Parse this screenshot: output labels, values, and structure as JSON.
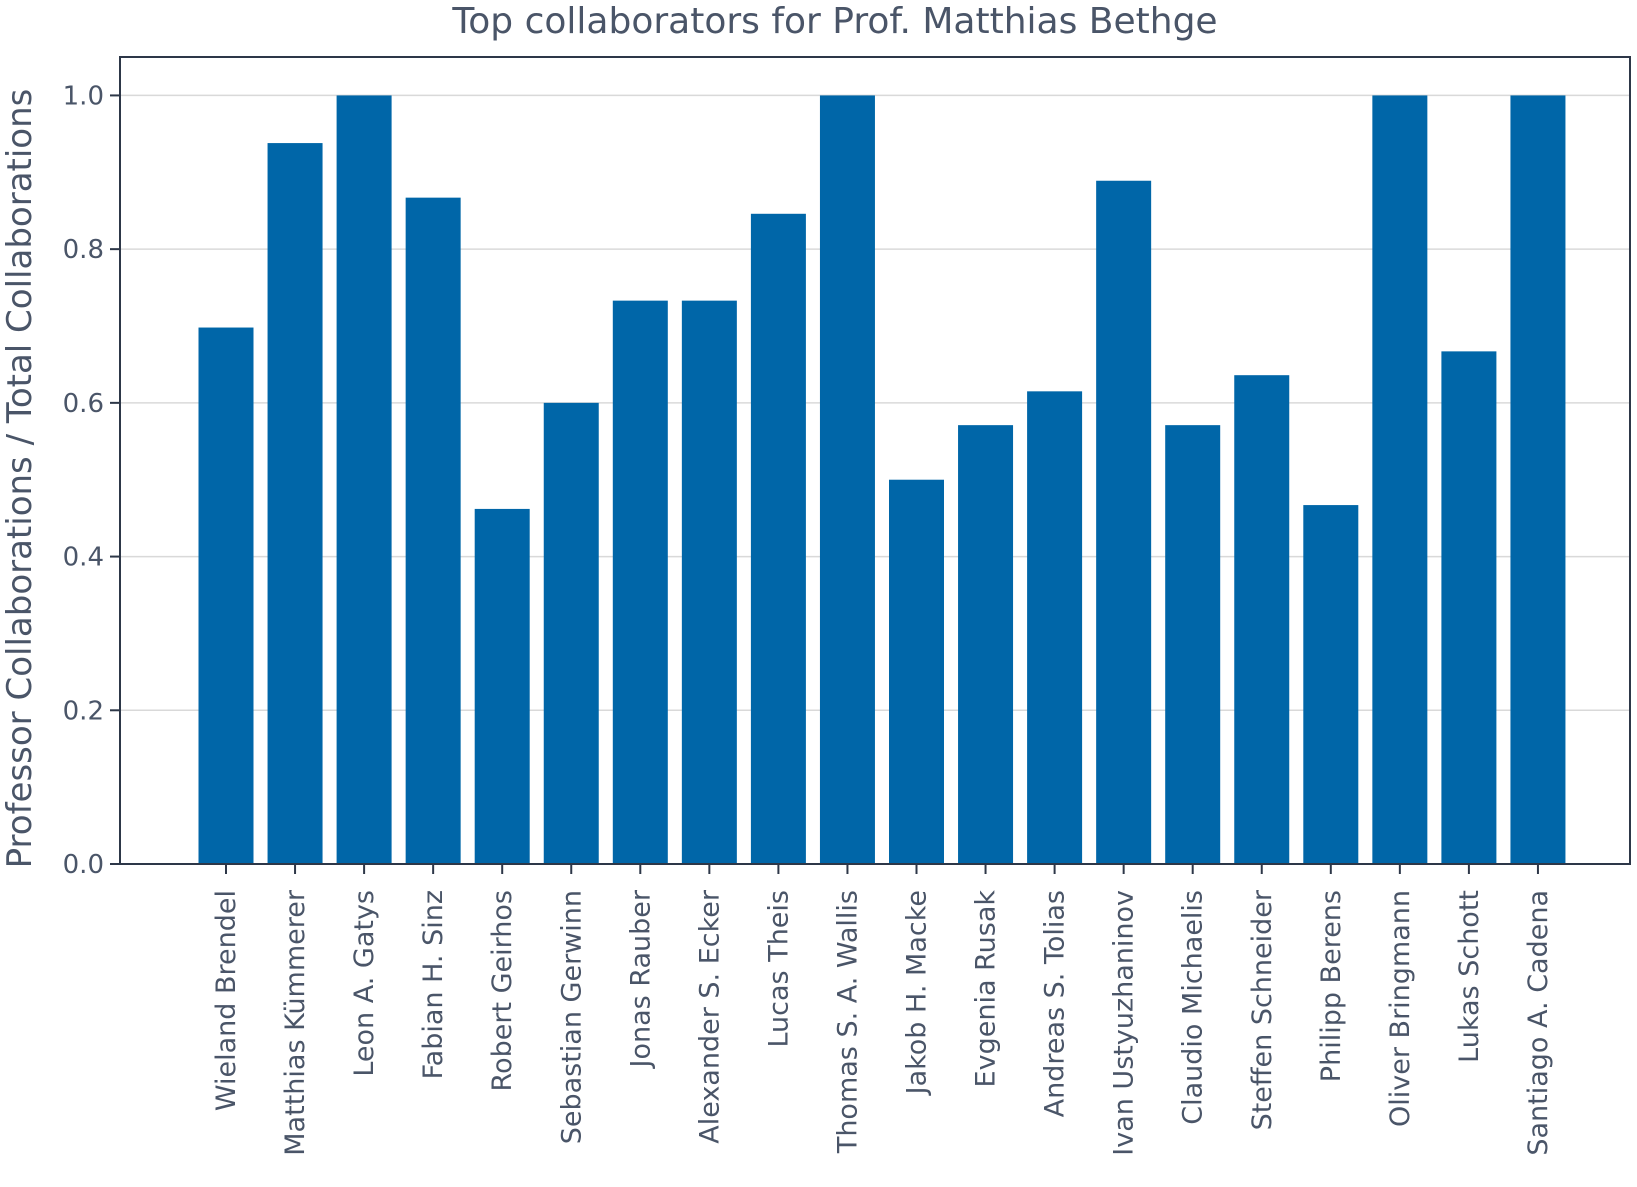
{
  "chart_data": {
    "type": "bar",
    "title": "Top collaborators for Prof. Matthias Bethge",
    "xlabel": "",
    "ylabel": "Professor Collaborations / Total Collaborations",
    "ylim": [
      0,
      1.05
    ],
    "yticks": [
      "0.0",
      "0.2",
      "0.4",
      "0.6",
      "0.8",
      "1.0"
    ],
    "grid": "horizontal",
    "bar_color": "#0066a8",
    "categories": [
      "Wieland Brendel",
      "Matthias Kümmerer",
      "Leon A. Gatys",
      "Fabian H. Sinz",
      "Robert Geirhos",
      "Sebastian Gerwinn",
      "Jonas Rauber",
      "Alexander S. Ecker",
      "Lucas Theis",
      "Thomas S. A. Wallis",
      "Jakob H. Macke",
      "Evgenia Rusak",
      "Andreas S. Tolias",
      "Ivan Ustyuzhaninov",
      "Claudio Michaelis",
      "Steffen Schneider",
      "Philipp Berens",
      "Oliver Bringmann",
      "Lukas Schott",
      "Santiago A. Cadena"
    ],
    "values": [
      0.698,
      0.938,
      1.0,
      0.867,
      0.462,
      0.6,
      0.733,
      0.733,
      0.846,
      1.0,
      0.5,
      0.571,
      0.615,
      0.889,
      0.571,
      0.636,
      0.467,
      1.0,
      0.667,
      1.0
    ]
  }
}
